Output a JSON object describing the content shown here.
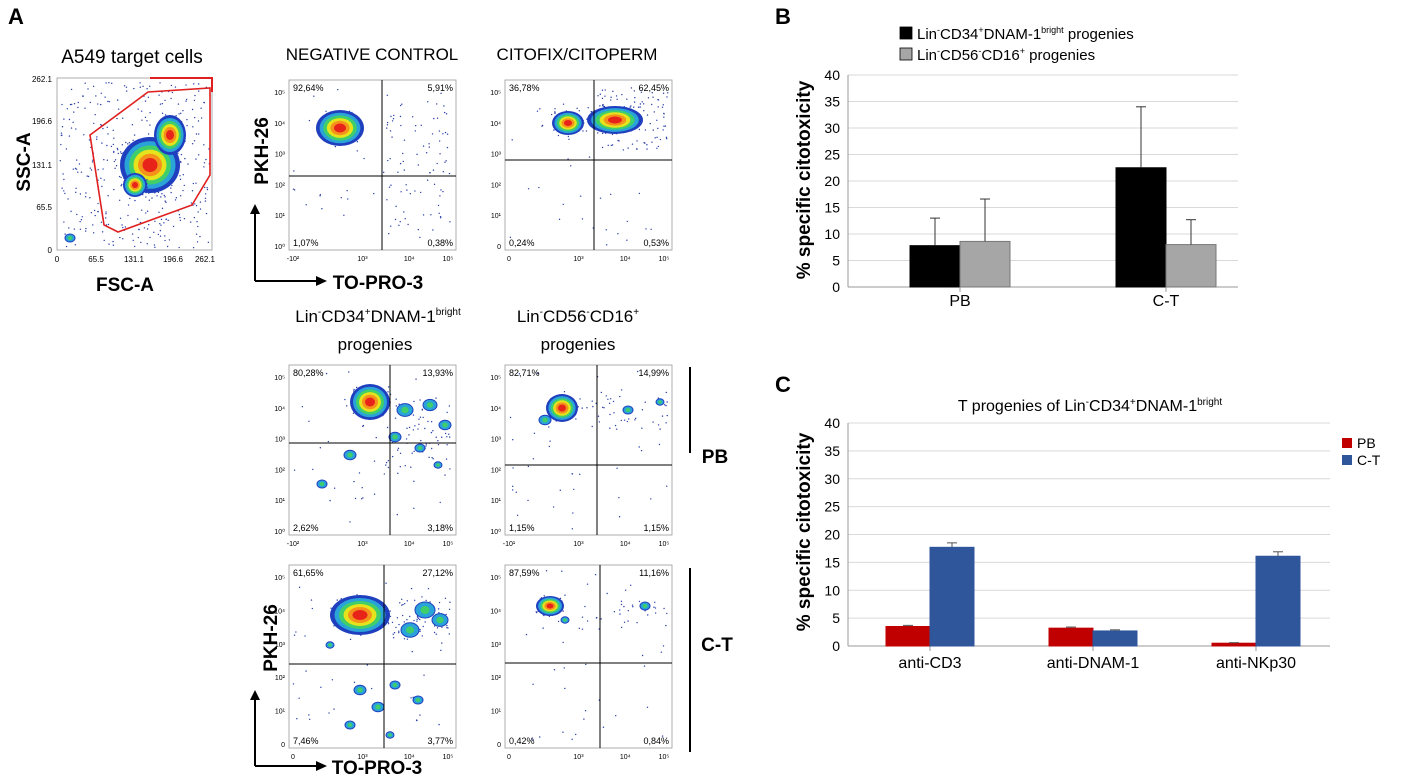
{
  "panel_labels": {
    "a": "A",
    "b": "B",
    "c": "C"
  },
  "panel_a": {
    "gating_plot": {
      "title": "A549 target cells",
      "xlabel": "FSC-A",
      "ylabel": "SSC-A",
      "x_ticks": [
        "0",
        "65.5",
        "131.1",
        "196.6",
        "262.1"
      ],
      "y_ticks": [
        "0",
        "65.5",
        "131.1",
        "196.6",
        "262.1"
      ]
    },
    "column_titles": {
      "negative": "NEGATIVE CONTROL",
      "citofix": "CITOFIX/CITOPERM",
      "lin_cd34_line1": "Lin",
      "lin_cd34_sup1": "-",
      "lin_cd34_line1b": "CD34",
      "lin_cd34_sup2": "+",
      "lin_cd34_line1c": "DNAM-1",
      "lin_cd34_sup3": "bright",
      "lin_cd34_line2": "progenies",
      "lin_cd56_line1": "Lin",
      "lin_cd56_sup1": "-",
      "lin_cd56_line1b": "CD56",
      "lin_cd56_sup2": "-",
      "lin_cd56_line1c": "CD16",
      "lin_cd56_sup3": "+",
      "lin_cd56_line2": "progenies"
    },
    "axis_labels": {
      "y": "PKH-26",
      "x": "TO-PRO-3"
    },
    "row_labels": {
      "pb": "PB",
      "ct": "C-T"
    },
    "plots": [
      {
        "id": "negative",
        "q": [
          "92,64%",
          "5,91%",
          "1,07%",
          "0,38%"
        ],
        "yt": [
          "10⁵",
          "10⁴",
          "10³",
          "10²",
          "10¹",
          "10⁰"
        ],
        "xt": [
          "-10²",
          "10³",
          "10⁴",
          "10⁵"
        ]
      },
      {
        "id": "citofix",
        "q": [
          "36,78%",
          "62,45%",
          "0,24%",
          "0,53%"
        ],
        "yt": [
          "10⁵",
          "10⁴",
          "10³",
          "10²",
          "10¹",
          "0"
        ],
        "xt": [
          "0",
          "10³",
          "10⁴",
          "10⁵"
        ]
      },
      {
        "id": "pb_cd34",
        "q": [
          "80,28%",
          "13,93%",
          "2,62%",
          "3,18%"
        ],
        "yt": [
          "10⁵",
          "10⁴",
          "10³",
          "10²",
          "10¹",
          "10⁰"
        ],
        "xt": [
          "-10²",
          "10³",
          "10⁴",
          "10⁵"
        ]
      },
      {
        "id": "pb_cd56",
        "q": [
          "82,71%",
          "14,99%",
          "1,15%",
          "1,15%"
        ],
        "yt": [
          "10⁵",
          "10⁴",
          "10³",
          "10²",
          "10¹",
          "10⁰"
        ],
        "xt": [
          "-10¹",
          "10³",
          "10⁴",
          "10⁵"
        ]
      },
      {
        "id": "ct_cd34",
        "q": [
          "61,65%",
          "27,12%",
          "7,46%",
          "3,77%"
        ],
        "yt": [
          "10⁵",
          "10⁴",
          "10³",
          "10²",
          "10¹",
          "0"
        ],
        "xt": [
          "0",
          "10³",
          "10⁴",
          "10⁵"
        ]
      },
      {
        "id": "ct_cd56",
        "q": [
          "87,59%",
          "11,16%",
          "0,42%",
          "0,84%"
        ],
        "yt": [
          "10⁵",
          "10⁴",
          "10³",
          "10²",
          "10¹",
          "0"
        ],
        "xt": [
          "0",
          "10³",
          "10⁴",
          "10⁵"
        ]
      }
    ]
  },
  "chart_data": [
    {
      "id": "B",
      "type": "bar",
      "categories": [
        "PB",
        "C-T"
      ],
      "series": [
        {
          "name": "Lin-CD34+DNAM-1bright progenies",
          "color": "#000000",
          "values": [
            7.8,
            22.5
          ],
          "errors": [
            5.2,
            11.5
          ]
        },
        {
          "name": "Lin-CD56-CD16+ progenies",
          "color": "#a6a6a6",
          "values": [
            8.6,
            8.0
          ],
          "errors": [
            8.0,
            4.7
          ]
        }
      ],
      "legend": [
        {
          "pre": "Lin",
          "s1": "-",
          "mid": "CD34",
          "s2": "+",
          "mid2": "DNAM-1",
          "s3": "bright",
          "post": " progenies"
        },
        {
          "pre": "Lin",
          "s1": "-",
          "mid": "CD56",
          "s2": "-",
          "mid2": "CD16",
          "s3": "+",
          "post": " progenies"
        }
      ],
      "ylabel": "% specific citotoxicity",
      "ylim": [
        0,
        40
      ],
      "yticks": [
        0,
        5,
        10,
        15,
        20,
        25,
        30,
        35,
        40
      ],
      "grid": true
    },
    {
      "id": "C",
      "type": "bar",
      "title_parts": {
        "pre": "T progenies of Lin",
        "s1": "-",
        "mid": "CD34",
        "s2": "+",
        "mid2": "DNAM-1",
        "s3": "bright"
      },
      "categories": [
        "anti-CD3",
        "anti-DNAM-1",
        "anti-NKp30"
      ],
      "series": [
        {
          "name": "PB",
          "color": "#c00000",
          "values": [
            3.5,
            3.2,
            0.5
          ],
          "errors": [
            0.2,
            0.2,
            0.1
          ]
        },
        {
          "name": "C-T",
          "color": "#2f559b",
          "values": [
            17.7,
            2.7,
            16.1
          ],
          "errors": [
            0.8,
            0.2,
            0.8
          ]
        }
      ],
      "ylabel": "% specific citotoxicity",
      "ylim": [
        0,
        40
      ],
      "yticks": [
        0,
        5,
        10,
        15,
        20,
        25,
        30,
        35,
        40
      ],
      "grid": true,
      "legend_position": "right"
    }
  ]
}
